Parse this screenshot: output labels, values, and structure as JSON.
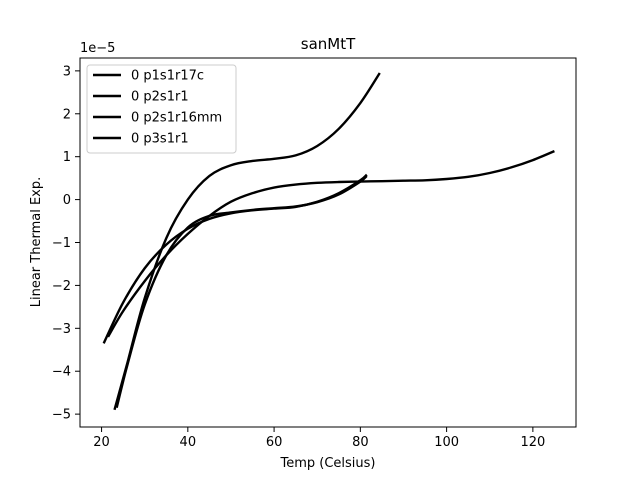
{
  "chart_data": {
    "type": "line",
    "title": "sanMtT",
    "xlabel": "Temp (Celsius)",
    "ylabel": "Linear Thermal Exp.",
    "y_offset_label": "1e−5",
    "xlim": [
      15,
      130
    ],
    "ylim": [
      -5.3,
      3.3
    ],
    "x_ticks": [
      20,
      40,
      60,
      80,
      100,
      120
    ],
    "y_ticks": [
      -5,
      -4,
      -3,
      -2,
      -1,
      0,
      1,
      2,
      3
    ],
    "grid": false,
    "legend_position": "top-left",
    "series": [
      {
        "name": "0 p1s1r17c",
        "color": "#000000",
        "x": [
          23,
          26,
          30,
          35,
          40,
          45,
          50,
          55,
          60,
          65,
          70,
          75,
          80,
          84.5
        ],
        "y": [
          -4.9,
          -3.8,
          -2.3,
          -0.9,
          0.0,
          0.55,
          0.8,
          0.9,
          0.95,
          1.03,
          1.25,
          1.65,
          2.25,
          2.95
        ]
      },
      {
        "name": "0 p2s1r1",
        "color": "#000000",
        "x": [
          20.5,
          25,
          30,
          35,
          40,
          45,
          50,
          55,
          60,
          65,
          70,
          75,
          80,
          81.5
        ],
        "y": [
          -3.35,
          -2.4,
          -1.6,
          -1.05,
          -0.68,
          -0.45,
          -0.32,
          -0.25,
          -0.21,
          -0.17,
          -0.05,
          0.15,
          0.45,
          0.58
        ]
      },
      {
        "name": "0 p2s1r16mm",
        "color": "#000000",
        "x": [
          21.5,
          25,
          30,
          35,
          40,
          45,
          50,
          55,
          60,
          65,
          70,
          75,
          80,
          85,
          90,
          95,
          100,
          105,
          110,
          115,
          120,
          125
        ],
        "y": [
          -3.2,
          -2.6,
          -1.9,
          -1.3,
          -0.8,
          -0.38,
          -0.05,
          0.15,
          0.28,
          0.35,
          0.39,
          0.41,
          0.42,
          0.43,
          0.44,
          0.45,
          0.48,
          0.53,
          0.62,
          0.75,
          0.92,
          1.13
        ]
      },
      {
        "name": "0 p3s1r1",
        "color": "#000000",
        "x": [
          23.5,
          26,
          30,
          35,
          40,
          45,
          50,
          55,
          60,
          65,
          70,
          75,
          80,
          81.5
        ],
        "y": [
          -4.85,
          -3.85,
          -2.45,
          -1.3,
          -0.65,
          -0.38,
          -0.3,
          -0.24,
          -0.2,
          -0.16,
          -0.06,
          0.12,
          0.42,
          0.55
        ]
      }
    ]
  }
}
